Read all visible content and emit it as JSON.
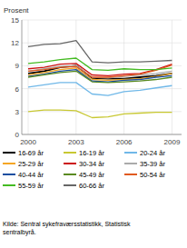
{
  "chart_data": {
    "type": "line",
    "ylabel": "Prosent",
    "annotations": [
      "Kilde: Sentral sykefraværsstatistikk, Statistisk\nsentralbyrå."
    ],
    "x": [
      2000,
      2001,
      2002,
      2003,
      2004,
      2005,
      2006,
      2007,
      2008,
      2009
    ],
    "xlim": [
      1999.6,
      2009.6
    ],
    "xticks": [
      2000,
      2003,
      2006,
      2009
    ],
    "ylim": [
      0,
      15
    ],
    "yticks": [
      0,
      3,
      6,
      9,
      12,
      15
    ],
    "grid": true,
    "legend": "bottom",
    "series": [
      {
        "name": "16-69 år",
        "color": "#000000",
        "values": [
          8.0,
          8.3,
          8.8,
          9.0,
          7.4,
          7.3,
          7.3,
          7.5,
          7.7,
          8.0
        ]
      },
      {
        "name": "16-19 år",
        "color": "#c8c832",
        "values": [
          3.0,
          3.2,
          3.2,
          3.1,
          2.2,
          2.3,
          2.7,
          2.8,
          2.9,
          2.9
        ]
      },
      {
        "name": "20-24 år",
        "color": "#70b8e8",
        "values": [
          6.2,
          6.5,
          6.8,
          6.8,
          5.3,
          5.1,
          5.6,
          5.8,
          6.1,
          6.4
        ]
      },
      {
        "name": "25-29 år",
        "color": "#f5a623",
        "values": [
          7.8,
          8.1,
          8.5,
          8.7,
          7.2,
          7.1,
          7.2,
          7.3,
          7.6,
          8.0
        ]
      },
      {
        "name": "30-34 år",
        "color": "#cc1111",
        "values": [
          8.6,
          8.8,
          9.2,
          9.3,
          7.8,
          7.7,
          7.9,
          8.0,
          8.5,
          9.2
        ]
      },
      {
        "name": "35-39 år",
        "color": "#aaaaaa",
        "values": [
          8.3,
          8.6,
          8.9,
          9.0,
          7.5,
          7.4,
          7.6,
          7.8,
          8.0,
          8.3
        ]
      },
      {
        "name": "40-44 år",
        "color": "#1a4fa0",
        "values": [
          7.6,
          7.9,
          8.3,
          8.5,
          7.0,
          6.9,
          7.1,
          7.2,
          7.5,
          7.7
        ]
      },
      {
        "name": "45-49 år",
        "color": "#5a8a20",
        "values": [
          7.5,
          7.8,
          8.1,
          8.3,
          6.9,
          6.8,
          6.9,
          7.0,
          7.2,
          7.5
        ]
      },
      {
        "name": "50-54 år",
        "color": "#e05a20",
        "values": [
          8.3,
          8.5,
          8.8,
          8.9,
          7.5,
          7.5,
          7.7,
          7.9,
          8.4,
          9.1
        ]
      },
      {
        "name": "55-59 år",
        "color": "#44bb22",
        "values": [
          9.3,
          9.5,
          9.8,
          10.0,
          8.5,
          8.4,
          8.6,
          8.5,
          8.5,
          8.7
        ]
      },
      {
        "name": "60-66 år",
        "color": "#666666",
        "values": [
          11.5,
          11.8,
          11.9,
          12.3,
          9.5,
          9.4,
          9.5,
          9.5,
          9.6,
          9.7
        ]
      }
    ]
  }
}
